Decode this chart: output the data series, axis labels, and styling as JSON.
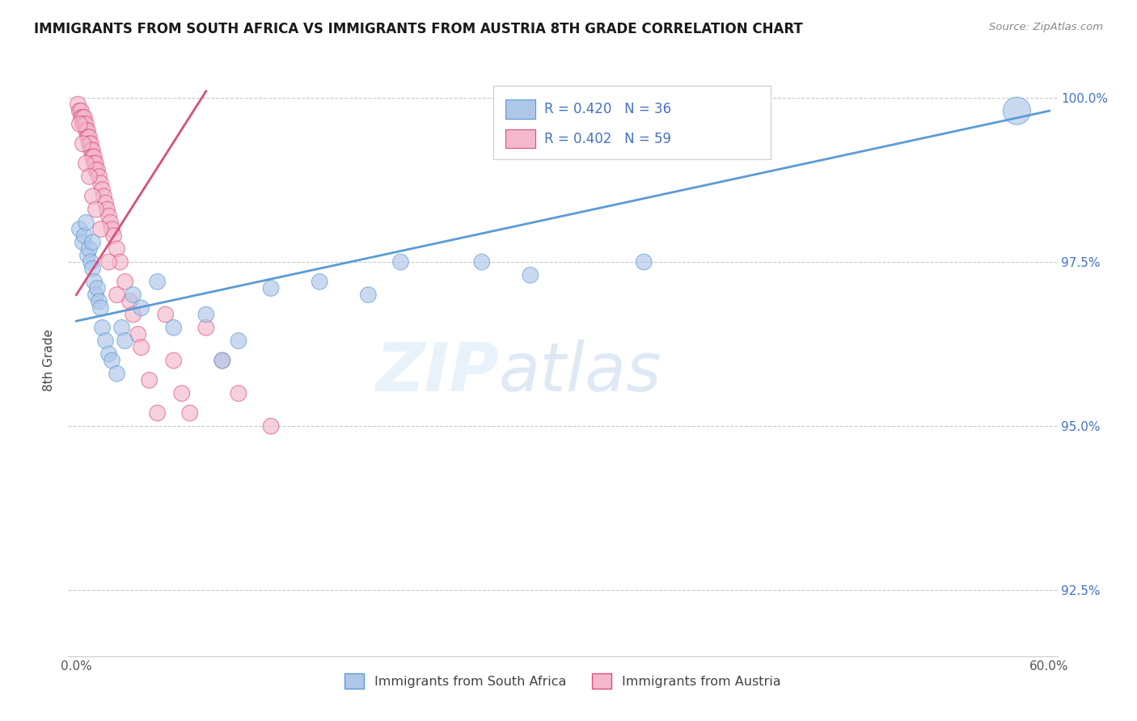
{
  "title": "IMMIGRANTS FROM SOUTH AFRICA VS IMMIGRANTS FROM AUSTRIA 8TH GRADE CORRELATION CHART",
  "source_text": "Source: ZipAtlas.com",
  "ylabel": "8th Grade",
  "xlim": [
    -0.005,
    0.605
  ],
  "ylim": [
    0.915,
    1.005
  ],
  "xtick_pos": [
    0.0,
    0.1,
    0.2,
    0.3,
    0.4,
    0.5,
    0.6
  ],
  "xticklabels": [
    "0.0%",
    "",
    "",
    "",
    "",
    "",
    "60.0%"
  ],
  "ytick_pos": [
    0.925,
    0.95,
    0.975,
    1.0
  ],
  "yticklabels": [
    "92.5%",
    "95.0%",
    "97.5%",
    "100.0%"
  ],
  "r_south_africa": 0.42,
  "n_south_africa": 36,
  "r_austria": 0.402,
  "n_austria": 59,
  "color_south_africa": "#aec6e8",
  "color_austria": "#f4b8cc",
  "edge_south_africa": "#5b9bd5",
  "edge_austria": "#d94f7a",
  "trendline_blue": "#5b9bd5",
  "trendline_pink": "#d94f7a",
  "legend_text_color": "#4472c4",
  "background_color": "#ffffff",
  "sa_x": [
    0.002,
    0.004,
    0.005,
    0.006,
    0.007,
    0.008,
    0.009,
    0.01,
    0.01,
    0.011,
    0.012,
    0.013,
    0.014,
    0.015,
    0.016,
    0.018,
    0.02,
    0.022,
    0.025,
    0.028,
    0.03,
    0.035,
    0.04,
    0.05,
    0.06,
    0.08,
    0.09,
    0.1,
    0.12,
    0.15,
    0.18,
    0.2,
    0.25,
    0.28,
    0.35,
    0.58
  ],
  "sa_y": [
    0.98,
    0.978,
    0.979,
    0.981,
    0.976,
    0.977,
    0.975,
    0.978,
    0.974,
    0.972,
    0.97,
    0.971,
    0.969,
    0.968,
    0.965,
    0.963,
    0.961,
    0.96,
    0.958,
    0.965,
    0.963,
    0.97,
    0.968,
    0.972,
    0.965,
    0.967,
    0.96,
    0.963,
    0.971,
    0.972,
    0.97,
    0.975,
    0.975,
    0.973,
    0.975,
    0.998
  ],
  "sa_sizes": [
    200,
    200,
    200,
    200,
    200,
    200,
    200,
    200,
    200,
    200,
    200,
    200,
    200,
    200,
    200,
    200,
    200,
    200,
    200,
    200,
    200,
    200,
    200,
    200,
    200,
    200,
    200,
    200,
    200,
    200,
    200,
    200,
    200,
    200,
    200,
    600
  ],
  "at_x": [
    0.001,
    0.002,
    0.003,
    0.003,
    0.004,
    0.004,
    0.005,
    0.005,
    0.006,
    0.006,
    0.007,
    0.007,
    0.008,
    0.008,
    0.009,
    0.009,
    0.01,
    0.01,
    0.011,
    0.011,
    0.012,
    0.012,
    0.013,
    0.014,
    0.015,
    0.016,
    0.017,
    0.018,
    0.019,
    0.02,
    0.021,
    0.022,
    0.023,
    0.025,
    0.027,
    0.03,
    0.033,
    0.035,
    0.038,
    0.04,
    0.045,
    0.05,
    0.055,
    0.06,
    0.065,
    0.07,
    0.08,
    0.09,
    0.1,
    0.12,
    0.002,
    0.004,
    0.006,
    0.008,
    0.01,
    0.012,
    0.015,
    0.02,
    0.025
  ],
  "at_y": [
    0.999,
    0.998,
    0.998,
    0.997,
    0.997,
    0.996,
    0.997,
    0.996,
    0.996,
    0.995,
    0.995,
    0.994,
    0.994,
    0.993,
    0.993,
    0.992,
    0.992,
    0.991,
    0.991,
    0.99,
    0.99,
    0.989,
    0.989,
    0.988,
    0.987,
    0.986,
    0.985,
    0.984,
    0.983,
    0.982,
    0.981,
    0.98,
    0.979,
    0.977,
    0.975,
    0.972,
    0.969,
    0.967,
    0.964,
    0.962,
    0.957,
    0.952,
    0.967,
    0.96,
    0.955,
    0.952,
    0.965,
    0.96,
    0.955,
    0.95,
    0.996,
    0.993,
    0.99,
    0.988,
    0.985,
    0.983,
    0.98,
    0.975,
    0.97
  ],
  "at_sizes": [
    200,
    200,
    200,
    200,
    200,
    200,
    200,
    200,
    200,
    200,
    200,
    200,
    200,
    200,
    200,
    200,
    200,
    200,
    200,
    200,
    200,
    200,
    200,
    200,
    200,
    200,
    200,
    200,
    200,
    200,
    200,
    200,
    200,
    200,
    200,
    200,
    200,
    200,
    200,
    200,
    200,
    200,
    200,
    200,
    200,
    200,
    200,
    200,
    200,
    200,
    200,
    200,
    200,
    200,
    200,
    200,
    200,
    200,
    200
  ]
}
